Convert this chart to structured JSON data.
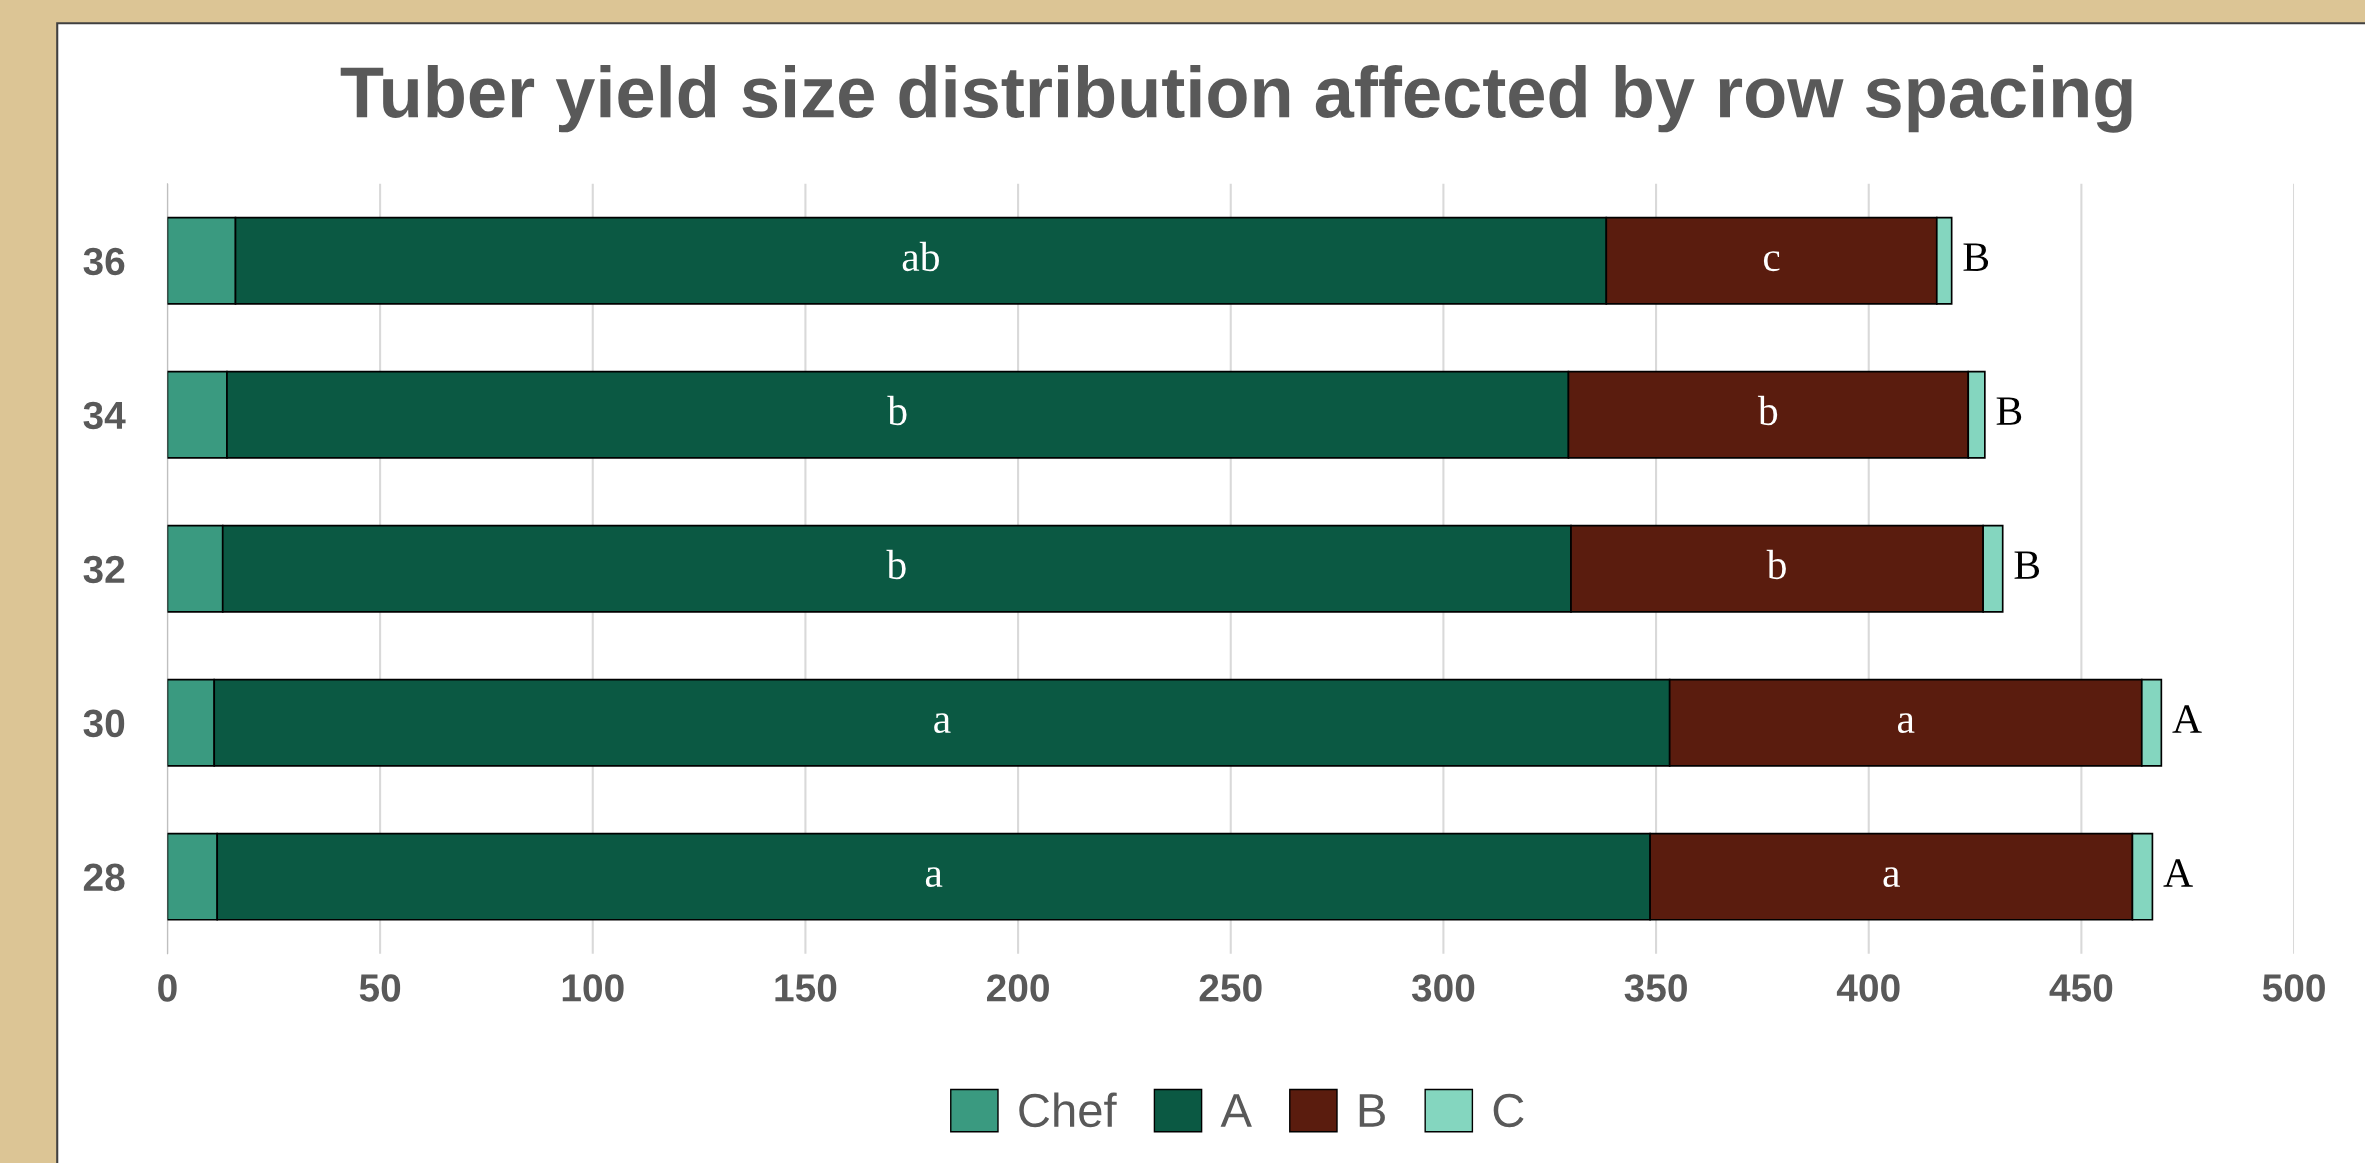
{
  "chart_data": {
    "type": "bar",
    "orientation": "horizontal",
    "stacked": true,
    "title": "Tuber yield size distribution affected by row spacing",
    "categories": [
      "36",
      "34",
      "32",
      "30",
      "28"
    ],
    "series": [
      {
        "name": "Chef",
        "color": "#3a9a80",
        "values": [
          16,
          14,
          13,
          11,
          11.7
        ]
      },
      {
        "name": "A",
        "color": "#0b5943",
        "values": [
          322.3,
          315.4,
          317,
          342.2,
          336.9
        ],
        "value_labels": [
          "ab",
          "b",
          "b",
          "a",
          "a"
        ]
      },
      {
        "name": "B",
        "color": "#5a1c0e",
        "values": [
          77.7,
          94,
          96.9,
          111,
          113.4
        ],
        "value_labels": [
          "c",
          "b",
          "b",
          "a",
          "a"
        ]
      },
      {
        "name": "C",
        "color": "#84d6bf",
        "values": [
          3.5,
          3.9,
          4.6,
          4.6,
          4.7
        ],
        "value_labels": [
          "B",
          "B",
          "B",
          "A",
          "A"
        ]
      }
    ],
    "xlim": [
      0,
      500
    ],
    "xticks": [
      0,
      50,
      100,
      150,
      200,
      250,
      300,
      350,
      400,
      450,
      500
    ],
    "grid": "x",
    "legend": "bottom"
  }
}
